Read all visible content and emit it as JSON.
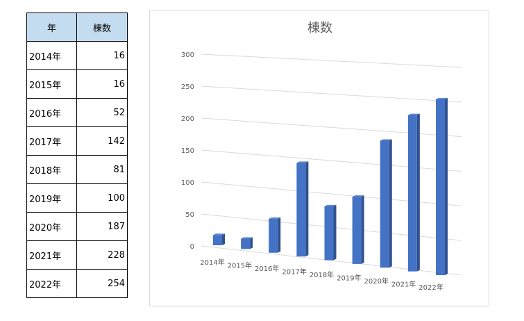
{
  "table": {
    "headers": [
      "年",
      "棟数"
    ],
    "rows": [
      {
        "year": "2014年",
        "count": "16"
      },
      {
        "year": "2015年",
        "count": "16"
      },
      {
        "year": "2016年",
        "count": "52"
      },
      {
        "year": "2017年",
        "count": "142"
      },
      {
        "year": "2018年",
        "count": "81"
      },
      {
        "year": "2019年",
        "count": "100"
      },
      {
        "year": "2020年",
        "count": "187"
      },
      {
        "year": "2021年",
        "count": "228"
      },
      {
        "year": "2022年",
        "count": "254"
      }
    ]
  },
  "chart_data": {
    "type": "bar",
    "title": "棟数",
    "categories": [
      "2014年",
      "2015年",
      "2016年",
      "2017年",
      "2018年",
      "2019年",
      "2020年",
      "2021年",
      "2022年"
    ],
    "values": [
      16,
      16,
      52,
      142,
      81,
      100,
      187,
      228,
      254
    ],
    "ylim": [
      0,
      300
    ],
    "yticks": [
      "0",
      "50",
      "100",
      "150",
      "200",
      "250",
      "300"
    ],
    "grid": true,
    "style": "3d-column",
    "bar_color": "#4472c4"
  }
}
